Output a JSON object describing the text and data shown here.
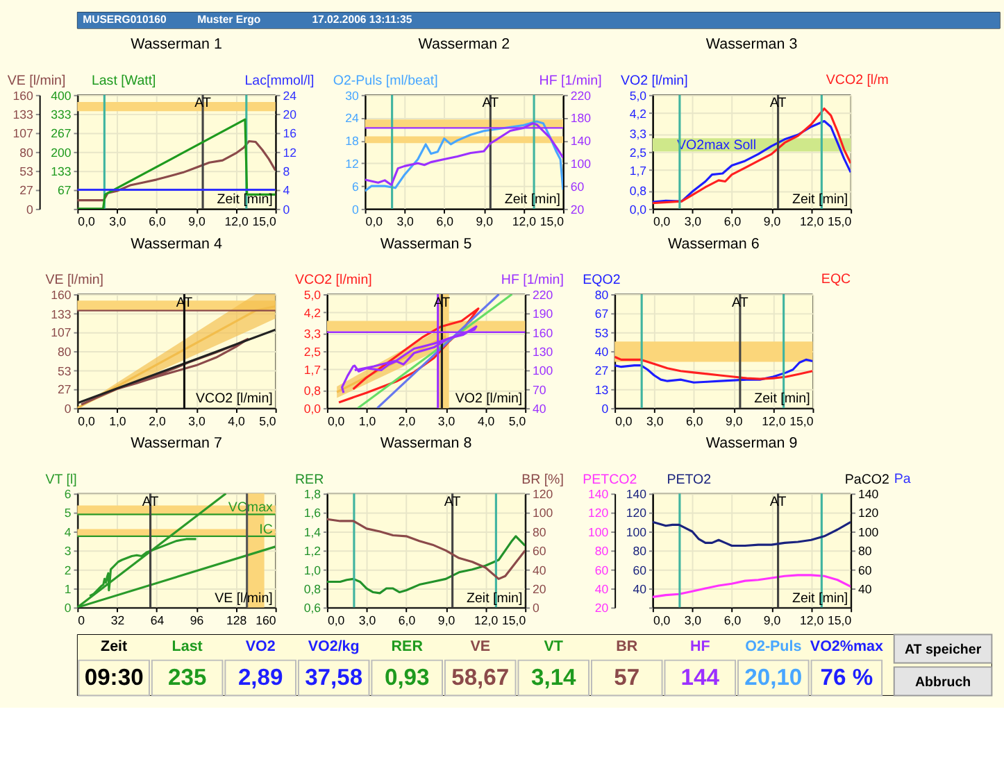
{
  "chart_data": [
    {
      "type": "other",
      "annotations": [
        "MUSERG010160",
        "Muster Ergo",
        "17.02.2006 13:11:35"
      ]
    },
    {
      "type": "line",
      "title": "Wasserman 1",
      "xlabel": "Zeit [min]",
      "ylabel": "VE [l/min]",
      "y3label": "Last [Watt]",
      "y2label": "Lac[mmol/l]",
      "grid": true,
      "xlim": [
        0,
        15
      ],
      "xticks": [
        {
          "value": 0,
          "label": "0,0"
        },
        {
          "value": 3,
          "label": "3,0"
        },
        {
          "value": 6,
          "label": "6,0"
        },
        {
          "value": 9,
          "label": "9,0"
        },
        {
          "value": 12,
          "label": "12,0"
        },
        {
          "value": 15,
          "label": "15,0"
        }
      ],
      "ylim": [
        0,
        160
      ],
      "yticks": [
        0,
        27,
        53,
        80,
        107,
        133,
        160
      ],
      "y3lim": [
        0,
        400
      ],
      "y3ticks": [
        {
          "value": 0,
          "label": null
        },
        67,
        133,
        200,
        267,
        333,
        400
      ],
      "y2lim": [
        0,
        24
      ],
      "y2ticks": [
        0,
        4,
        8,
        12,
        16,
        20,
        24
      ],
      "bands": [
        {
          "axis": "y",
          "from": 137,
          "to": 150,
          "color": "#fbd67a"
        }
      ],
      "ref_lines": [
        {
          "axis": "x",
          "value": 2.05,
          "color": "#40b4a0"
        },
        {
          "axis": "x",
          "value": 12.8,
          "color": "#40b4a0"
        },
        {
          "axis": "x",
          "value": 9.5,
          "label": "AT",
          "color": "#444444"
        }
      ],
      "series": [
        {
          "color": "#8b4a4a",
          "x": [
            0,
            2,
            2.3,
            3,
            4,
            5,
            6,
            7,
            8,
            9,
            10,
            11,
            12,
            12.6,
            13,
            13.5,
            14,
            14.5,
            15
          ],
          "values": [
            12,
            12,
            22,
            25,
            33,
            37,
            41,
            46,
            51,
            58,
            65,
            68,
            78,
            86,
            95,
            94,
            83,
            70,
            54
          ]
        },
        {
          "axis": "y3",
          "color": "#1e9a1e",
          "x": [
            0,
            1.95,
            2.1,
            12.7,
            12.85,
            15
          ],
          "values": [
            0,
            0,
            50,
            314,
            50,
            50
          ]
        },
        {
          "axis": "y2",
          "color": "#3030ff",
          "x": [
            0,
            15
          ],
          "values": [
            4,
            4
          ]
        }
      ]
    },
    {
      "type": "line",
      "title": "Wasserman 2",
      "xlabel": "Zeit [min]",
      "ylabel": "O2-Puls [ml/beat]",
      "y2label": "HF [1/min]",
      "grid": true,
      "xlim": [
        0,
        15
      ],
      "xticks": [
        {
          "value": 0,
          "label": "0,0"
        },
        {
          "value": 3,
          "label": "3,0"
        },
        {
          "value": 6,
          "label": "6,0"
        },
        {
          "value": 9,
          "label": "9,0"
        },
        {
          "value": 12,
          "label": "12,0"
        },
        {
          "value": 15,
          "label": "15,0"
        }
      ],
      "ylim": [
        0,
        30
      ],
      "yticks": [
        0,
        6,
        12,
        18,
        24,
        30
      ],
      "y2lim": [
        20,
        220
      ],
      "y2ticks": [
        20,
        60,
        100,
        140,
        180,
        220
      ],
      "bands": [
        {
          "axis": "y",
          "from": 21.3,
          "to": 23.5,
          "color": "#fbd67a"
        },
        {
          "axis": "y",
          "from": 17.3,
          "to": 19.1,
          "color": "#fbd67a"
        }
      ],
      "ref_lines": [
        {
          "axis": "x",
          "value": 2.05,
          "color": "#40b4a0"
        },
        {
          "axis": "x",
          "value": 12.8,
          "color": "#40b4a0"
        },
        {
          "axis": "x",
          "value": 9.5,
          "label": "AT",
          "color": "#444444"
        },
        {
          "axis": "y2",
          "value": 162,
          "color": "#9b30ff"
        }
      ],
      "series": [
        {
          "color": "#48a6ff",
          "x": [
            0,
            0.5,
            1.5,
            2,
            2.3,
            3,
            4,
            4.6,
            5,
            5.5,
            6,
            6.5,
            7,
            8,
            9,
            10,
            11,
            12,
            13,
            13.5,
            14,
            14.5,
            14.8,
            15
          ],
          "values": [
            4.7,
            6,
            6,
            5.7,
            5.5,
            9,
            13,
            17,
            14.5,
            15,
            18.5,
            17,
            18,
            19.5,
            20.5,
            21,
            21.5,
            22,
            23,
            22.5,
            19,
            15,
            13,
            5
          ]
        },
        {
          "axis": "y2",
          "color": "#9b30ff",
          "x": [
            0,
            1,
            1.5,
            2,
            2.5,
            3,
            4,
            4.5,
            5,
            6,
            7,
            8,
            9,
            9.5,
            10,
            11,
            12,
            12.7,
            13,
            14,
            14.5,
            15
          ],
          "values": [
            71,
            66,
            70,
            62,
            91,
            95,
            100,
            97,
            102,
            107,
            112,
            118,
            121,
            135,
            142,
            157,
            162,
            170,
            168,
            145,
            128,
            110
          ]
        }
      ]
    },
    {
      "type": "line",
      "title": "Wasserman 3",
      "xlabel": "Zeit [min]",
      "ylabel": "VO2 [l/min]",
      "y2label": "VCO2 [l/m",
      "grid": true,
      "xlim": [
        0,
        15
      ],
      "xticks": [
        {
          "value": 0,
          "label": "0,0"
        },
        {
          "value": 3,
          "label": "3,0"
        },
        {
          "value": 6,
          "label": "6,0"
        },
        {
          "value": 9,
          "label": "9,0"
        },
        {
          "value": 12,
          "label": "12,0"
        },
        {
          "value": 15,
          "label": "15,0"
        }
      ],
      "ylim": [
        0,
        5
      ],
      "yticks": [
        {
          "value": 0,
          "label": "0,0"
        },
        {
          "value": 0.8,
          "label": "0,8"
        },
        {
          "value": 1.7,
          "label": "1,7"
        },
        {
          "value": 2.5,
          "label": "2,5"
        },
        {
          "value": 3.3,
          "label": "3,3"
        },
        {
          "value": 4.2,
          "label": "4,2"
        },
        {
          "value": 5,
          "label": "5,0"
        }
      ],
      "bands": [
        {
          "axis": "y",
          "from": 2.52,
          "to": 3.1,
          "label": "VO2max Soll",
          "color": "#cfe88a"
        }
      ],
      "ref_lines": [
        {
          "axis": "x",
          "value": 2.05,
          "color": "#40b4a0"
        },
        {
          "axis": "x",
          "value": 12.8,
          "color": "#40b4a0"
        },
        {
          "axis": "x",
          "value": 9.5,
          "label": "AT",
          "color": "#444444"
        }
      ],
      "series": [
        {
          "color": "#1e1eff",
          "x": [
            0,
            1,
            2.2,
            3,
            4,
            4.5,
            5.3,
            6,
            7,
            8,
            9,
            10,
            11,
            12,
            13,
            13.5,
            14,
            14.5,
            15
          ],
          "values": [
            0.3,
            0.35,
            0.33,
            0.75,
            1.2,
            1.5,
            1.55,
            1.9,
            2.1,
            2.4,
            2.75,
            3.05,
            3.25,
            3.6,
            3.85,
            3.6,
            2.9,
            2.2,
            1.6
          ]
        },
        {
          "color": "#ff2020",
          "x": [
            0,
            2.2,
            3,
            4,
            5,
            5.5,
            6,
            7,
            8,
            9,
            10,
            11,
            12,
            13,
            13.5,
            14,
            14.5,
            15
          ],
          "values": [
            0.25,
            0.33,
            0.6,
            0.95,
            1.25,
            1.2,
            1.5,
            1.8,
            2.1,
            2.4,
            2.9,
            3.2,
            3.7,
            4.4,
            4.1,
            3.4,
            2.6,
            2.0
          ]
        }
      ]
    },
    {
      "type": "line",
      "title": "Wasserman 4",
      "xlabel": "VCO2 [l/min]",
      "ylabel": "VE [l/min]",
      "grid": true,
      "xlim": [
        0,
        5
      ],
      "xticks": [
        {
          "value": 0,
          "label": "0,0"
        },
        {
          "value": 1,
          "label": "1,0"
        },
        {
          "value": 2,
          "label": "2,0"
        },
        {
          "value": 3,
          "label": "3,0"
        },
        {
          "value": 4,
          "label": "4,0"
        },
        {
          "value": 5,
          "label": "5,0"
        }
      ],
      "ylim": [
        0,
        160
      ],
      "yticks": [
        0,
        27,
        53,
        80,
        107,
        133,
        160
      ],
      "bands": [
        {
          "axis": "y",
          "from": 137,
          "to": 151,
          "color": "#fbd67a"
        }
      ],
      "ref_lines": [
        {
          "axis": "y",
          "value": 137,
          "color": "#8b4a4a"
        },
        {
          "axis": "x",
          "value": 2.7,
          "label": "AT",
          "color": "#111111"
        }
      ],
      "series": [
        {
          "color": "#f2bd4c",
          "x": [
            0,
            4.5,
            5
          ],
          "values": [
            0,
            137,
            143
          ],
          "lower": [
            0,
            113,
            126
          ],
          "upper": [
            0,
            160,
            160
          ]
        },
        {
          "color": "#8b4a4a",
          "x": [
            0.1,
            0.5,
            1.0,
            1.5,
            2.0,
            2.5,
            2.8,
            3.0,
            3.5,
            4.0,
            4.3,
            4.0,
            3.5,
            3.0,
            2.8,
            2.5,
            2.0,
            1.5,
            1.0
          ],
          "values": [
            5,
            15,
            27,
            36,
            46,
            57,
            64,
            68,
            78,
            89,
            97,
            86,
            71,
            60,
            57,
            52,
            44,
            35,
            27
          ]
        },
        {
          "color": "#222222",
          "x": [
            0,
            5
          ],
          "values": [
            7,
            110
          ]
        }
      ]
    },
    {
      "type": "line",
      "title": "Wasserman 5",
      "xlabel": "VO2 [l/min]",
      "ylabel": "VCO2 [l/min]",
      "y2label": "HF [1/min]",
      "grid": true,
      "xlim": [
        0,
        5
      ],
      "xticks": [
        {
          "value": 0,
          "label": "0,0"
        },
        {
          "value": 1,
          "label": "1,0"
        },
        {
          "value": 2,
          "label": "2,0"
        },
        {
          "value": 3,
          "label": "3,0"
        },
        {
          "value": 4,
          "label": "4,0"
        },
        {
          "value": 5,
          "label": "5,0"
        }
      ],
      "ylim": [
        0,
        5
      ],
      "yticks": [
        {
          "value": 0,
          "label": "0,0"
        },
        {
          "value": 0.8,
          "label": "0,8"
        },
        {
          "value": 1.7,
          "label": "1,7"
        },
        {
          "value": 2.5,
          "label": "2,5"
        },
        {
          "value": 3.3,
          "label": "3,3"
        },
        {
          "value": 4.2,
          "label": "4,2"
        },
        {
          "value": 5,
          "label": "5,0"
        }
      ],
      "y2lim": [
        40,
        220
      ],
      "y2ticks": [
        40,
        70,
        100,
        130,
        160,
        190,
        220
      ],
      "bands": [
        {
          "axis": "y",
          "from": 3.37,
          "to": 3.83,
          "color": "#fbd67a"
        },
        {
          "axis": "x",
          "from": 2.81,
          "to": 3.08,
          "color": "#fbd67a"
        }
      ],
      "ref_lines": [
        {
          "axis": "y2",
          "value": 160,
          "color": "#9b30ff"
        },
        {
          "axis": "x",
          "value": 2.8,
          "color": "#9b30ff"
        },
        {
          "axis": "x",
          "value": 2.9,
          "label": "AT",
          "color": "#222222"
        }
      ],
      "series": [
        {
          "color": "#f2bd4c",
          "x": [
            0.25,
            3.0
          ],
          "values": [
            0.7,
            3.15
          ],
          "lower": [
            0.45,
            2.7
          ],
          "upper": [
            0.95,
            3.6
          ]
        },
        {
          "color": "#ff2020",
          "x": [
            0.3,
            0.99,
            1.75,
            2.2,
            2.7,
            3.07,
            3.44,
            3.82,
            3.4,
            2.88,
            2.4,
            1.93,
            1.46,
            0.99,
            0.66
          ],
          "values": [
            0.25,
            0.67,
            1.17,
            1.58,
            2.2,
            2.9,
            3.48,
            4.37,
            3.83,
            3.58,
            3.1,
            2.5,
            1.9,
            1.33,
            0.83
          ]
        },
        {
          "color": "#66dd66",
          "x": [
            0.78,
            4.67
          ],
          "values": [
            0,
            5
          ]
        },
        {
          "color": "#6677ee",
          "x": [
            1.27,
            4.34
          ],
          "values": [
            0,
            5
          ]
        },
        {
          "axis": "y2",
          "color": "#9b30ff",
          "x": [
            0.42,
            0.38,
            0.52,
            0.66,
            0.7,
            0.8,
            0.99,
            1.37,
            1.56,
            1.75,
            1.93,
            2.2,
            2.7,
            3.07,
            3.44,
            3.77,
            3.72,
            3.25,
            2.7,
            2.2,
            1.75,
            1.18,
            0.7
          ],
          "values": [
            64,
            73,
            91,
            106,
            107,
            98,
            103,
            100,
            109,
            114,
            109,
            127,
            136,
            150,
            156,
            169,
            164,
            154,
            142,
            134,
            115,
            106,
            100
          ]
        }
      ]
    },
    {
      "type": "line",
      "title": "Wasserman 6",
      "xlabel": "Zeit [min]",
      "ylabel": "EQO2",
      "y2label": "EQC",
      "grid": true,
      "xlim": [
        0,
        15
      ],
      "xticks": [
        {
          "value": 0,
          "label": "0,0"
        },
        {
          "value": 3,
          "label": "3,0"
        },
        {
          "value": 6,
          "label": "6,0"
        },
        {
          "value": 9,
          "label": "9,0"
        },
        {
          "value": 12,
          "label": "12,0"
        },
        {
          "value": 15,
          "label": "15,0"
        }
      ],
      "ylim": [
        0,
        80
      ],
      "yticks": [
        0,
        13,
        27,
        40,
        53,
        67,
        80
      ],
      "bands": [
        {
          "axis": "y",
          "from": 32.5,
          "to": 46.7,
          "color": "#fbd67a"
        }
      ],
      "ref_lines": [
        {
          "axis": "x",
          "value": 2.05,
          "color": "#40b4a0"
        },
        {
          "axis": "x",
          "value": 12.8,
          "color": "#40b4a0"
        },
        {
          "axis": "x",
          "value": 9.5,
          "label": "AT",
          "color": "#444444"
        }
      ],
      "series": [
        {
          "color": "#1e1eff",
          "x": [
            0,
            0.5,
            1.5,
            2,
            2.5,
            3,
            3.5,
            4,
            5,
            5.5,
            6,
            7,
            8,
            9,
            10,
            11,
            12,
            13,
            13.5,
            14,
            14.5,
            15
          ],
          "values": [
            30,
            29,
            30,
            30,
            27,
            23,
            20,
            19,
            20,
            19,
            18,
            18.5,
            19,
            19.5,
            20,
            20,
            22,
            25,
            27,
            32,
            34,
            33
          ]
        },
        {
          "color": "#ff2020",
          "x": [
            0,
            0.5,
            2,
            3,
            4,
            5,
            6,
            7,
            8,
            9,
            10,
            11,
            12,
            13,
            14,
            15
          ],
          "values": [
            36,
            34,
            34,
            31,
            28,
            26,
            25,
            24,
            23,
            22,
            21,
            20.5,
            21,
            22,
            24,
            26
          ]
        }
      ]
    },
    {
      "type": "line",
      "title": "Wasserman 7",
      "xlabel": "VE [l/min]",
      "ylabel": "VT [l]",
      "grid": true,
      "xlim": [
        0,
        160
      ],
      "xticks": [
        0,
        32,
        64,
        96,
        128,
        160
      ],
      "ylim": [
        0,
        6
      ],
      "yticks": [
        0,
        1,
        2,
        3,
        4,
        5,
        6
      ],
      "bands": [
        {
          "axis": "y",
          "from": 4.87,
          "to": 5.37,
          "color": "#fbd67a"
        },
        {
          "axis": "y",
          "from": 3.72,
          "to": 4.13,
          "color": "#fbd67a"
        },
        {
          "axis": "x",
          "from": 137,
          "to": 151,
          "color": "#fbd67a"
        }
      ],
      "ref_lines": [
        {
          "axis": "y",
          "value": 4.9,
          "label": "VCmax",
          "color": "#2a9a2a"
        },
        {
          "axis": "y",
          "value": 3.75,
          "label": "IC",
          "color": "#2a9a2a"
        },
        {
          "axis": "x",
          "value": 137,
          "color": "#555555"
        },
        {
          "axis": "x",
          "value": 59,
          "label": "AT",
          "color": "#444444"
        }
      ],
      "series": [
        {
          "color": "#2a9a2a",
          "x": [
            0,
            120
          ],
          "values": [
            0,
            6
          ]
        },
        {
          "color": "#2a9a2a",
          "x": [
            0,
            160
          ],
          "values": [
            0,
            3.2
          ]
        },
        {
          "color": "#2a9a2a",
          "x": [
            10,
            13,
            16,
            19,
            21,
            22,
            23,
            24,
            25,
            25.5,
            26,
            27,
            30,
            33,
            36,
            40,
            44,
            48,
            52,
            56,
            60,
            64,
            68,
            72,
            76,
            80,
            84,
            88,
            92,
            96
          ],
          "values": [
            0.6,
            0.7,
            0.9,
            1.1,
            1.2,
            1.5,
            1.3,
            1.6,
            1.8,
            0.9,
            1.2,
            2.0,
            2.2,
            2.4,
            2.5,
            2.6,
            2.7,
            2.75,
            2.7,
            2.9,
            3.0,
            3.1,
            3.2,
            3.3,
            3.4,
            3.5,
            3.55,
            3.6,
            3.6,
            3.6
          ]
        }
      ]
    },
    {
      "type": "line",
      "title": "Wasserman 8",
      "xlabel": "Zeit [min]",
      "ylabel": "RER",
      "y2label": "BR [%]",
      "grid": true,
      "xlim": [
        0,
        15
      ],
      "xticks": [
        {
          "value": 0,
          "label": "0,0"
        },
        {
          "value": 3,
          "label": "3,0"
        },
        {
          "value": 6,
          "label": "6,0"
        },
        {
          "value": 9,
          "label": "9,0"
        },
        {
          "value": 12,
          "label": "12,0"
        },
        {
          "value": 15,
          "label": "15,0"
        }
      ],
      "ylim": [
        0.6,
        1.8
      ],
      "yticks": [
        {
          "value": 0.6,
          "label": "0,6"
        },
        {
          "value": 0.8,
          "label": "0,8"
        },
        {
          "value": 1,
          "label": "1,0"
        },
        {
          "value": 1.2,
          "label": "1,2"
        },
        {
          "value": 1.4,
          "label": "1,4"
        },
        {
          "value": 1.6,
          "label": "1,6"
        },
        {
          "value": 1.8,
          "label": "1,8"
        }
      ],
      "y2lim": [
        0,
        120
      ],
      "y2ticks": [
        0,
        20,
        40,
        60,
        80,
        100,
        120
      ],
      "ref_lines": [
        {
          "axis": "x",
          "value": 2.05,
          "color": "#40b4a0"
        },
        {
          "axis": "x",
          "value": 12.8,
          "color": "#40b4a0"
        },
        {
          "axis": "x",
          "value": 9.5,
          "label": "AT",
          "color": "#444444"
        }
      ],
      "series": [
        {
          "color": "#22922a",
          "x": [
            0,
            1,
            1.5,
            2,
            2.5,
            3,
            3.5,
            4,
            4.5,
            5,
            5.5,
            6,
            7,
            8,
            9,
            10,
            11,
            12,
            13,
            13.5,
            14,
            14.3,
            15
          ],
          "values": [
            0.87,
            0.87,
            0.89,
            0.9,
            0.87,
            0.8,
            0.76,
            0.75,
            0.8,
            0.8,
            0.76,
            0.78,
            0.84,
            0.87,
            0.9,
            0.97,
            1.0,
            1.04,
            1.1,
            1.2,
            1.3,
            1.35,
            1.25
          ]
        },
        {
          "axis": "y2",
          "color": "#8b4a4a",
          "x": [
            0,
            1,
            2,
            3,
            4,
            5,
            6,
            7,
            8,
            9,
            10,
            11,
            12,
            13,
            13.5,
            14,
            15
          ],
          "values": [
            93,
            91,
            91,
            83,
            80,
            76,
            75,
            70,
            66,
            60,
            52,
            48,
            42,
            30,
            33,
            42,
            60
          ]
        }
      ]
    },
    {
      "type": "line",
      "title": "Wasserman 9",
      "xlabel": "Zeit [min]",
      "ylabel": "PETCO2",
      "y3label": "PETO2",
      "y2label": "PaCO2",
      "annotations": [
        "Pa"
      ],
      "grid": true,
      "xlim": [
        0,
        15
      ],
      "xticks": [
        {
          "value": 0,
          "label": "0,0"
        },
        {
          "value": 3,
          "label": "3,0"
        },
        {
          "value": 6,
          "label": "6,0"
        },
        {
          "value": 9,
          "label": "9,0"
        },
        {
          "value": 12,
          "label": "12,0"
        },
        {
          "value": 15,
          "label": "15,0"
        }
      ],
      "ylim": [
        20,
        140
      ],
      "yticks": [
        20,
        40,
        60,
        80,
        100,
        120,
        140
      ],
      "y3lim": [
        20,
        140
      ],
      "y3ticks": [
        {
          "value": 20,
          "label": null
        },
        40,
        60,
        80,
        100,
        120,
        140
      ],
      "y2lim": [
        20,
        140
      ],
      "y2ticks": [
        40,
        60,
        80,
        100,
        120,
        140
      ],
      "ref_lines": [
        {
          "axis": "x",
          "value": 2.05,
          "color": "#40b4a0"
        },
        {
          "axis": "x",
          "value": 12.8,
          "color": "#40b4a0"
        },
        {
          "axis": "x",
          "value": 9.5,
          "label": "AT",
          "color": "#444444"
        }
      ],
      "series": [
        {
          "color": "#ff33ff",
          "x": [
            0,
            1,
            2,
            3,
            4,
            5,
            6,
            7,
            8,
            9,
            10,
            11,
            12,
            13,
            14,
            15
          ],
          "values": [
            31,
            33,
            34,
            37,
            40,
            43,
            45,
            48,
            49,
            51,
            53,
            54,
            54,
            53,
            49,
            42
          ]
        },
        {
          "axis": "y3",
          "color": "#1a237e",
          "x": [
            0,
            1,
            1.5,
            2,
            3,
            3.5,
            4,
            4.5,
            5,
            5.5,
            6,
            7,
            8,
            9,
            10,
            11,
            12,
            13,
            14,
            15
          ],
          "values": [
            110,
            106,
            107,
            107,
            100,
            92,
            88,
            88,
            91,
            88,
            85,
            85,
            86,
            86,
            88,
            89,
            91,
            95,
            102,
            110
          ]
        }
      ]
    },
    {
      "type": "other",
      "series": [
        {
          "name": "Zeit",
          "color": "#000000",
          "values": [
            9.5
          ],
          "value_labels": [
            "09:30"
          ]
        },
        {
          "name": "Last",
          "color": "#1e9a1e",
          "values": [
            235
          ],
          "value_labels": [
            "235"
          ]
        },
        {
          "name": "VO2",
          "color": "#1e1eff",
          "values": [
            2.89
          ],
          "value_labels": [
            "2,89"
          ]
        },
        {
          "name": "VO2/kg",
          "color": "#1e1eff",
          "values": [
            37.58
          ],
          "value_labels": [
            "37,58"
          ]
        },
        {
          "name": "RER",
          "color": "#1e9a1e",
          "values": [
            0.93
          ],
          "value_labels": [
            "0,93"
          ]
        },
        {
          "name": "VE",
          "color": "#8b4a4a",
          "values": [
            58.67
          ],
          "value_labels": [
            "58,67"
          ]
        },
        {
          "name": "VT",
          "color": "#1e9a1e",
          "values": [
            3.14
          ],
          "value_labels": [
            "3,14"
          ]
        },
        {
          "name": "BR",
          "color": "#8b4a4a",
          "values": [
            57
          ],
          "value_labels": [
            "57"
          ]
        },
        {
          "name": "HF",
          "color": "#9b30ff",
          "values": [
            144
          ],
          "value_labels": [
            "144"
          ]
        },
        {
          "name": "O2-Puls",
          "color": "#48a6ff",
          "values": [
            20.1
          ],
          "value_labels": [
            "20,10"
          ]
        },
        {
          "name": "VO2%max",
          "color": "#1e1eff",
          "values": [
            76
          ],
          "value_labels": [
            "76 %"
          ]
        }
      ],
      "legend": "top",
      "annotations": [
        "AT speicher",
        "Abbruch"
      ]
    }
  ]
}
